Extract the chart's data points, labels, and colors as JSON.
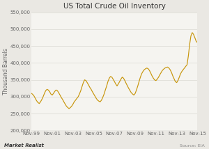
{
  "title": "US Total Crude Oil Inventory",
  "ylabel": "Thousand Barrels",
  "source_text": "Source: EIA",
  "branding_text": "Market Realist",
  "line_color": "#C8960C",
  "background_color": "#EAE8E3",
  "plot_bg_color": "#F5F4F0",
  "ylim": [
    200000,
    550000
  ],
  "yticks": [
    200000,
    250000,
    300000,
    350000,
    400000,
    450000,
    500000,
    550000
  ],
  "xtick_labels": [
    "Nov-99",
    "Nov-01",
    "Nov-03",
    "Nov-05",
    "Nov-07",
    "Nov-09",
    "Nov-11",
    "Nov-13",
    "Nov-15"
  ],
  "grid_color": "#D8D6D0",
  "title_fontsize": 7.5,
  "label_fontsize": 5.5,
  "tick_fontsize": 5.0,
  "data_x": [
    0,
    0.12,
    0.25,
    0.37,
    0.5,
    0.62,
    0.75,
    0.87,
    1,
    1.12,
    1.25,
    1.37,
    1.5,
    1.62,
    1.75,
    1.87,
    2,
    2.12,
    2.25,
    2.37,
    2.5,
    2.62,
    2.75,
    2.87,
    3,
    3.12,
    3.25,
    3.37,
    3.5,
    3.62,
    3.75,
    3.87,
    4,
    4.12,
    4.25,
    4.37,
    4.5,
    4.62,
    4.75,
    4.87,
    5,
    5.12,
    5.25,
    5.37,
    5.5,
    5.62,
    5.75,
    5.87,
    6,
    6.12,
    6.25,
    6.37,
    6.5,
    6.62,
    6.75,
    6.87,
    7,
    7.12,
    7.25,
    7.37,
    7.5,
    7.62,
    7.75,
    7.87,
    8,
    8.12,
    8.25,
    8.37,
    8.5,
    8.62,
    8.75,
    8.87,
    9,
    9.12,
    9.25,
    9.37,
    9.5,
    9.62,
    9.75,
    9.87,
    10,
    10.12,
    10.25,
    10.37,
    10.5,
    10.62,
    10.75,
    10.87,
    11,
    11.12,
    11.25,
    11.37,
    11.5,
    11.62,
    11.75,
    11.87,
    12,
    12.12,
    12.25,
    12.37,
    12.5,
    12.62,
    12.75,
    12.87,
    13,
    13.12,
    13.25,
    13.37,
    13.5,
    13.62,
    13.75,
    13.87,
    14,
    14.12,
    14.25,
    14.37,
    14.5,
    14.62,
    14.75,
    14.87,
    15,
    15.12,
    15.25,
    15.37,
    15.5,
    15.62,
    15.75,
    15.87,
    16
  ],
  "data_y": [
    310000,
    307000,
    302000,
    295000,
    288000,
    283000,
    280000,
    285000,
    292000,
    300000,
    310000,
    318000,
    322000,
    320000,
    315000,
    308000,
    305000,
    310000,
    316000,
    320000,
    318000,
    312000,
    305000,
    298000,
    292000,
    285000,
    278000,
    272000,
    268000,
    265000,
    268000,
    272000,
    278000,
    285000,
    290000,
    295000,
    300000,
    308000,
    318000,
    330000,
    342000,
    350000,
    348000,
    342000,
    335000,
    328000,
    322000,
    315000,
    308000,
    302000,
    295000,
    290000,
    287000,
    285000,
    290000,
    298000,
    308000,
    320000,
    332000,
    345000,
    355000,
    360000,
    358000,
    352000,
    345000,
    338000,
    332000,
    338000,
    345000,
    352000,
    358000,
    355000,
    348000,
    340000,
    332000,
    325000,
    318000,
    312000,
    308000,
    305000,
    310000,
    320000,
    332000,
    345000,
    358000,
    368000,
    375000,
    380000,
    383000,
    385000,
    383000,
    378000,
    370000,
    362000,
    355000,
    350000,
    348000,
    352000,
    358000,
    365000,
    372000,
    378000,
    382000,
    385000,
    387000,
    388000,
    385000,
    380000,
    372000,
    362000,
    353000,
    345000,
    342000,
    348000,
    358000,
    368000,
    375000,
    380000,
    385000,
    390000,
    395000,
    420000,
    455000,
    480000,
    490000,
    485000,
    475000,
    465000,
    460000
  ]
}
